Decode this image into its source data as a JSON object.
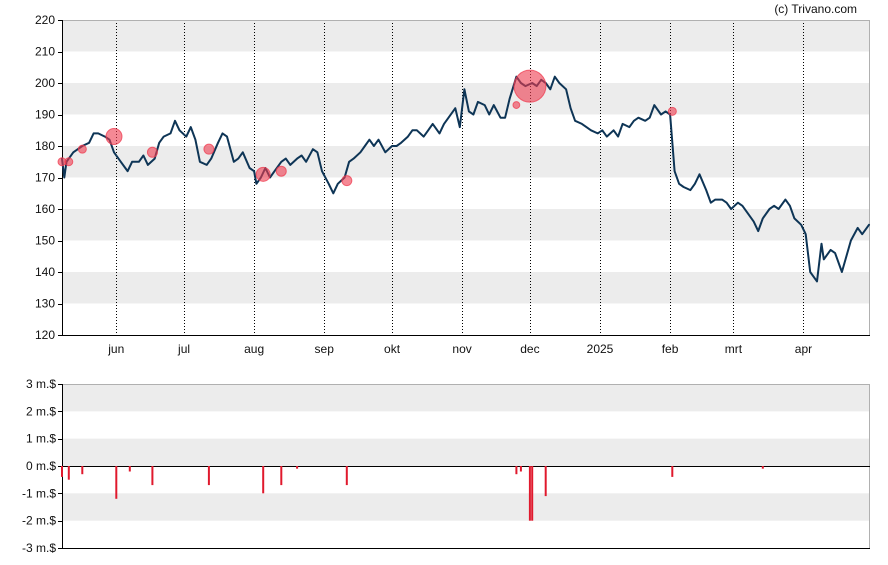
{
  "credit": "(c) Trivano.com",
  "colors": {
    "price_line": "#0e3556",
    "buy_marker": "#ef3b4f",
    "sell_bar": "#e0192d",
    "band": "#ececec",
    "axis": "#000000",
    "grid": "#000000"
  },
  "chart_data": [
    {
      "type": "line",
      "title": "",
      "xlabel": "",
      "ylabel": "",
      "ylim": [
        120,
        220
      ],
      "yticks": [
        120,
        130,
        140,
        150,
        160,
        170,
        180,
        190,
        200,
        210,
        220
      ],
      "ytick_labels": [
        "120",
        "130",
        "140",
        "150",
        "160",
        "170",
        "180",
        "190",
        "200",
        "210",
        "220"
      ],
      "xlim": [
        "2024-05-08",
        "2025-04-30"
      ],
      "month_ticks": [
        {
          "date": "2024-06-01",
          "label": "jun"
        },
        {
          "date": "2024-07-01",
          "label": "jul"
        },
        {
          "date": "2024-08-01",
          "label": "aug"
        },
        {
          "date": "2024-09-01",
          "label": "sep"
        },
        {
          "date": "2024-10-01",
          "label": "okt"
        },
        {
          "date": "2024-11-01",
          "label": "nov"
        },
        {
          "date": "2024-12-01",
          "label": "dec"
        },
        {
          "date": "2025-01-01",
          "label": "2025"
        },
        {
          "date": "2025-02-01",
          "label": "feb"
        },
        {
          "date": "2025-03-01",
          "label": "mrt"
        },
        {
          "date": "2025-04-01",
          "label": "apr"
        }
      ],
      "grid": "alternating horizontal bands, dotted vertical month lines",
      "series": [
        {
          "values": [
            [
              "2024-05-08",
              176
            ],
            [
              "2024-05-09",
              170
            ],
            [
              "2024-05-10",
              175
            ],
            [
              "2024-05-13",
              178
            ],
            [
              "2024-05-15",
              179
            ],
            [
              "2024-05-17",
              180
            ],
            [
              "2024-05-20",
              181
            ],
            [
              "2024-05-22",
              184
            ],
            [
              "2024-05-24",
              184
            ],
            [
              "2024-05-27",
              183
            ],
            [
              "2024-05-29",
              182
            ],
            [
              "2024-05-31",
              178
            ],
            [
              "2024-06-03",
              175
            ],
            [
              "2024-06-05",
              173
            ],
            [
              "2024-06-06",
              172
            ],
            [
              "2024-06-08",
              175
            ],
            [
              "2024-06-11",
              175
            ],
            [
              "2024-06-13",
              177
            ],
            [
              "2024-06-15",
              174
            ],
            [
              "2024-06-18",
              176
            ],
            [
              "2024-06-20",
              181
            ],
            [
              "2024-06-22",
              183
            ],
            [
              "2024-06-25",
              184
            ],
            [
              "2024-06-27",
              188
            ],
            [
              "2024-06-29",
              185
            ],
            [
              "2024-07-02",
              183
            ],
            [
              "2024-07-04",
              186
            ],
            [
              "2024-07-06",
              182
            ],
            [
              "2024-07-08",
              175
            ],
            [
              "2024-07-11",
              174
            ],
            [
              "2024-07-13",
              176
            ],
            [
              "2024-07-16",
              181
            ],
            [
              "2024-07-18",
              184
            ],
            [
              "2024-07-20",
              183
            ],
            [
              "2024-07-23",
              175
            ],
            [
              "2024-07-25",
              176
            ],
            [
              "2024-07-27",
              178
            ],
            [
              "2024-07-30",
              173
            ],
            [
              "2024-08-01",
              172
            ],
            [
              "2024-08-02",
              168
            ],
            [
              "2024-08-04",
              170
            ],
            [
              "2024-08-06",
              173
            ],
            [
              "2024-08-08",
              170
            ],
            [
              "2024-08-10",
              172
            ],
            [
              "2024-08-13",
              175
            ],
            [
              "2024-08-15",
              176
            ],
            [
              "2024-08-17",
              174
            ],
            [
              "2024-08-20",
              176
            ],
            [
              "2024-08-22",
              177
            ],
            [
              "2024-08-24",
              175
            ],
            [
              "2024-08-27",
              179
            ],
            [
              "2024-08-29",
              178
            ],
            [
              "2024-08-31",
              172
            ],
            [
              "2024-09-03",
              168
            ],
            [
              "2024-09-05",
              165
            ],
            [
              "2024-09-07",
              168
            ],
            [
              "2024-09-10",
              170
            ],
            [
              "2024-09-12",
              175
            ],
            [
              "2024-09-14",
              176
            ],
            [
              "2024-09-17",
              178
            ],
            [
              "2024-09-19",
              180
            ],
            [
              "2024-09-21",
              182
            ],
            [
              "2024-09-23",
              180
            ],
            [
              "2024-09-25",
              182
            ],
            [
              "2024-09-28",
              178
            ],
            [
              "2024-10-01",
              180
            ],
            [
              "2024-10-03",
              180
            ],
            [
              "2024-10-05",
              181
            ],
            [
              "2024-10-08",
              183
            ],
            [
              "2024-10-10",
              185
            ],
            [
              "2024-10-12",
              185
            ],
            [
              "2024-10-15",
              183
            ],
            [
              "2024-10-17",
              185
            ],
            [
              "2024-10-19",
              187
            ],
            [
              "2024-10-22",
              184
            ],
            [
              "2024-10-24",
              187
            ],
            [
              "2024-10-26",
              189
            ],
            [
              "2024-10-29",
              192
            ],
            [
              "2024-10-31",
              186
            ],
            [
              "2024-11-02",
              198
            ],
            [
              "2024-11-04",
              191
            ],
            [
              "2024-11-06",
              190
            ],
            [
              "2024-11-08",
              194
            ],
            [
              "2024-11-11",
              193
            ],
            [
              "2024-11-13",
              190
            ],
            [
              "2024-11-15",
              193
            ],
            [
              "2024-11-18",
              189
            ],
            [
              "2024-11-20",
              189
            ],
            [
              "2024-11-22",
              195
            ],
            [
              "2024-11-25",
              202
            ],
            [
              "2024-11-27",
              200
            ],
            [
              "2024-11-29",
              199
            ],
            [
              "2024-12-02",
              200
            ],
            [
              "2024-12-04",
              199
            ],
            [
              "2024-12-06",
              201
            ],
            [
              "2024-12-08",
              200
            ],
            [
              "2024-12-10",
              198
            ],
            [
              "2024-12-12",
              202
            ],
            [
              "2024-12-14",
              200
            ],
            [
              "2024-12-17",
              198
            ],
            [
              "2024-12-19",
              192
            ],
            [
              "2024-12-21",
              188
            ],
            [
              "2024-12-24",
              187
            ],
            [
              "2024-12-26",
              186
            ],
            [
              "2024-12-28",
              185
            ],
            [
              "2024-12-31",
              184
            ],
            [
              "2025-01-02",
              185
            ],
            [
              "2025-01-04",
              183
            ],
            [
              "2025-01-07",
              185
            ],
            [
              "2025-01-09",
              183
            ],
            [
              "2025-01-11",
              187
            ],
            [
              "2025-01-14",
              186
            ],
            [
              "2025-01-16",
              188
            ],
            [
              "2025-01-18",
              189
            ],
            [
              "2025-01-21",
              188
            ],
            [
              "2025-01-23",
              189
            ],
            [
              "2025-01-25",
              193
            ],
            [
              "2025-01-28",
              190
            ],
            [
              "2025-01-30",
              191
            ],
            [
              "2025-02-01",
              190
            ],
            [
              "2025-02-03",
              172
            ],
            [
              "2025-02-05",
              168
            ],
            [
              "2025-02-07",
              167
            ],
            [
              "2025-02-10",
              166
            ],
            [
              "2025-02-12",
              168
            ],
            [
              "2025-02-14",
              171
            ],
            [
              "2025-02-17",
              166
            ],
            [
              "2025-02-19",
              162
            ],
            [
              "2025-02-21",
              163
            ],
            [
              "2025-02-24",
              163
            ],
            [
              "2025-02-26",
              162
            ],
            [
              "2025-02-28",
              160
            ],
            [
              "2025-03-03",
              162
            ],
            [
              "2025-03-05",
              161
            ],
            [
              "2025-03-07",
              159
            ],
            [
              "2025-03-10",
              156
            ],
            [
              "2025-03-12",
              153
            ],
            [
              "2025-03-14",
              157
            ],
            [
              "2025-03-17",
              160
            ],
            [
              "2025-03-19",
              161
            ],
            [
              "2025-03-21",
              160
            ],
            [
              "2025-03-24",
              163
            ],
            [
              "2025-03-26",
              161
            ],
            [
              "2025-03-28",
              157
            ],
            [
              "2025-03-31",
              155
            ],
            [
              "2025-04-02",
              152
            ],
            [
              "2025-04-04",
              140
            ],
            [
              "2025-04-07",
              137
            ],
            [
              "2025-04-09",
              149
            ],
            [
              "2025-04-10",
              144
            ],
            [
              "2025-04-13",
              147
            ],
            [
              "2025-04-15",
              146
            ],
            [
              "2025-04-18",
              140
            ],
            [
              "2025-04-22",
              150
            ],
            [
              "2025-04-25",
              154
            ],
            [
              "2025-04-27",
              152
            ],
            [
              "2025-04-30",
              155
            ]
          ]
        }
      ],
      "markers": [
        {
          "date": "2024-05-08",
          "value": 175,
          "size": 1
        },
        {
          "date": "2024-05-11",
          "value": 175,
          "size": 1
        },
        {
          "date": "2024-05-17",
          "value": 179,
          "size": 1
        },
        {
          "date": "2024-05-31",
          "value": 183,
          "size": 3
        },
        {
          "date": "2024-06-17",
          "value": 178,
          "size": 1.5
        },
        {
          "date": "2024-07-12",
          "value": 179,
          "size": 1.5
        },
        {
          "date": "2024-08-05",
          "value": 171,
          "size": 2.5
        },
        {
          "date": "2024-08-13",
          "value": 172,
          "size": 1.5
        },
        {
          "date": "2024-09-11",
          "value": 169,
          "size": 1.5
        },
        {
          "date": "2024-11-25",
          "value": 193,
          "size": 0.7
        },
        {
          "date": "2024-12-01",
          "value": 199,
          "size": 7
        },
        {
          "date": "2025-02-02",
          "value": 191,
          "size": 1
        }
      ]
    },
    {
      "type": "bar",
      "title": "",
      "xlabel": "",
      "ylabel": "",
      "ylim": [
        -3,
        3
      ],
      "yticks": [
        -3,
        -2,
        -1,
        0,
        1,
        2,
        3
      ],
      "ytick_labels": [
        "-3 m.$",
        "-2 m.$",
        "-1 m.$",
        "0 m.$",
        "1 m.$",
        "2 m.$",
        "3 m.$"
      ],
      "bars": [
        {
          "date": "2024-05-08",
          "value": -0.4
        },
        {
          "date": "2024-05-11",
          "value": -0.5
        },
        {
          "date": "2024-05-17",
          "value": -0.3
        },
        {
          "date": "2024-06-01",
          "value": -1.2
        },
        {
          "date": "2024-06-07",
          "value": -0.2
        },
        {
          "date": "2024-06-17",
          "value": -0.7
        },
        {
          "date": "2024-07-12",
          "value": -0.7
        },
        {
          "date": "2024-08-05",
          "value": -1.0
        },
        {
          "date": "2024-08-13",
          "value": -0.7
        },
        {
          "date": "2024-08-20",
          "value": -0.1
        },
        {
          "date": "2024-09-11",
          "value": -0.7
        },
        {
          "date": "2024-11-25",
          "value": -0.3
        },
        {
          "date": "2024-11-27",
          "value": -0.2
        },
        {
          "date": "2024-12-01",
          "value": -2.0
        },
        {
          "date": "2024-12-02",
          "value": -2.0
        },
        {
          "date": "2024-12-08",
          "value": -1.1
        },
        {
          "date": "2025-02-02",
          "value": -0.4
        },
        {
          "date": "2025-03-14",
          "value": -0.1
        }
      ]
    }
  ]
}
